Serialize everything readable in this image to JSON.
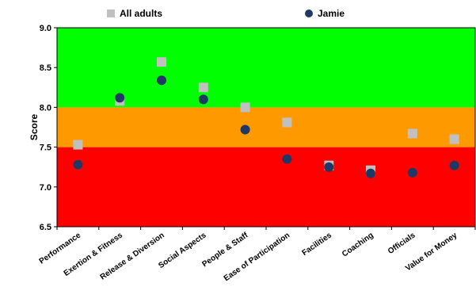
{
  "chart_data": {
    "type": "scatter",
    "categories": [
      "Performance",
      "Exertion & Fitness",
      "Release & Diversion",
      "Social Aspects",
      "People & Staff",
      "Ease of Participation",
      "Facilities",
      "Coaching",
      "Officials",
      "Value for Money"
    ],
    "series": [
      {
        "name": "All adults",
        "marker": "square",
        "color": "#c0c0c0",
        "values": [
          7.53,
          8.08,
          8.57,
          8.25,
          8.0,
          7.81,
          7.27,
          7.21,
          7.67,
          7.6
        ]
      },
      {
        "name": "Jamie",
        "marker": "circle",
        "color": "#1f3864",
        "values": [
          7.28,
          8.12,
          8.34,
          8.1,
          7.72,
          7.35,
          7.25,
          7.17,
          7.18,
          7.27
        ]
      }
    ],
    "ylabel": "Score",
    "xlabel": "",
    "ylim": [
      6.5,
      9.0
    ],
    "yticks": [
      "6.5",
      "7.0",
      "7.5",
      "8.0",
      "8.5",
      "9.0"
    ],
    "bands": [
      {
        "from": 6.5,
        "to": 7.5,
        "color": "#ff0000"
      },
      {
        "from": 7.5,
        "to": 8.0,
        "color": "#ff9900"
      },
      {
        "from": 8.0,
        "to": 9.0,
        "color": "#00ff00"
      }
    ],
    "grid": false,
    "legend_position": "top"
  }
}
